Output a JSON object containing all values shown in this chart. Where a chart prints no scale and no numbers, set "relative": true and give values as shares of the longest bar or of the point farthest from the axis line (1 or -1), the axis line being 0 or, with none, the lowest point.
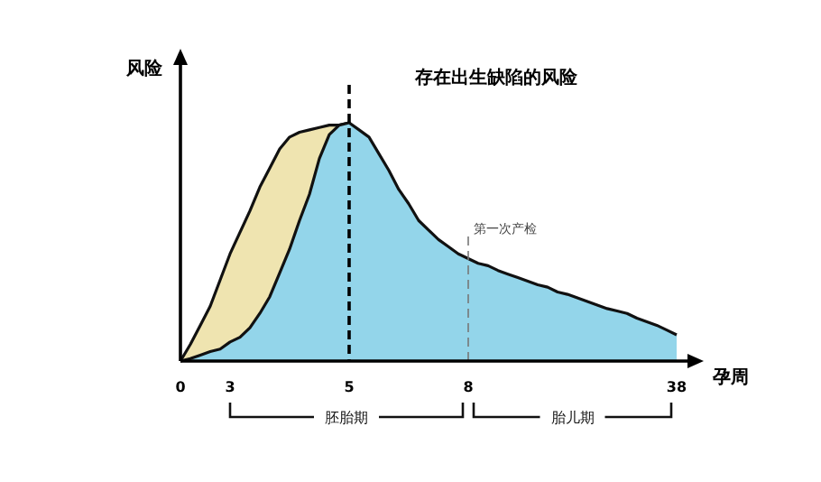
{
  "chart_data": {
    "type": "area",
    "title": "存在出生缺陷的风险",
    "xlabel": "孕周",
    "ylabel": "风险",
    "relative": true,
    "categories": [
      "0",
      null,
      null,
      null,
      null,
      "3",
      null,
      null,
      null,
      null,
      null,
      null,
      null,
      null,
      null,
      null,
      null,
      "5",
      null,
      null,
      null,
      null,
      null,
      null,
      null,
      null,
      null,
      null,
      null,
      "8",
      null,
      null,
      null,
      null,
      null,
      null,
      null,
      null,
      null,
      null,
      null,
      null,
      null,
      null,
      null,
      null,
      null,
      null,
      null,
      null,
      "38"
    ],
    "series": [
      {
        "color": "#efe4b0",
        "values": [
          0,
          0.07,
          0.15,
          0.23,
          0.34,
          0.45,
          0.54,
          0.63,
          0.73,
          0.81,
          0.89,
          0.94,
          0.96,
          0.97,
          0.98,
          0.99,
          0.99,
          1.0,
          null,
          null,
          null,
          null,
          null,
          null,
          null,
          null,
          null,
          null,
          null,
          null,
          null,
          null,
          null,
          null,
          null,
          null,
          null,
          null,
          null,
          null,
          null,
          null,
          null,
          null,
          null,
          null,
          null,
          null,
          null,
          null,
          null
        ]
      },
      {
        "color": "#93d5ea",
        "values": [
          0,
          0.01,
          0.025,
          0.04,
          0.05,
          0.08,
          0.1,
          0.14,
          0.2,
          0.27,
          0.37,
          0.47,
          0.59,
          0.7,
          0.85,
          0.95,
          0.99,
          1.0,
          0.97,
          0.94,
          0.87,
          0.8,
          0.72,
          0.66,
          0.59,
          0.55,
          0.51,
          0.48,
          0.45,
          0.43,
          0.41,
          0.4,
          0.38,
          0.365,
          0.35,
          0.335,
          0.32,
          0.31,
          0.29,
          0.28,
          0.265,
          0.25,
          0.235,
          0.22,
          0.21,
          0.2,
          0.18,
          0.165,
          0.15,
          0.13,
          0.11
        ]
      }
    ],
    "ref_lines": [
      {
        "axis": "x",
        "value": "5",
        "color": "#000000",
        "line_style": "dashed"
      },
      {
        "axis": "x",
        "value": "8",
        "label": "第一次产检",
        "color": "#777777",
        "line_style": "dashed"
      }
    ],
    "annotations": [
      "胚胎期",
      "胎儿期"
    ]
  }
}
